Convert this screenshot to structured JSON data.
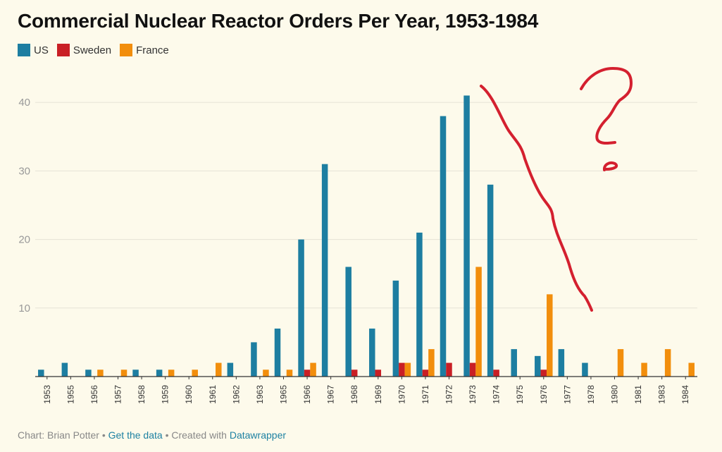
{
  "chart_data": {
    "type": "bar",
    "title": "Commercial Nuclear Reactor Orders Per Year, 1953-1984",
    "xlabel": "",
    "ylabel": "",
    "ylim": [
      0,
      44
    ],
    "yticks": [
      10,
      20,
      30,
      40
    ],
    "grid": true,
    "legend_position": "top-left",
    "categories": [
      "1953",
      "1955",
      "1956",
      "1957",
      "1958",
      "1959",
      "1960",
      "1961",
      "1962",
      "1963",
      "1965",
      "1966",
      "1967",
      "1968",
      "1969",
      "1970",
      "1971",
      "1972",
      "1973",
      "1974",
      "1975",
      "1976",
      "1977",
      "1978",
      "1980",
      "1981",
      "1983",
      "1984"
    ],
    "series": [
      {
        "name": "US",
        "color": "#1d7ea1",
        "values": [
          1,
          2,
          1,
          0,
          1,
          1,
          0,
          0,
          2,
          5,
          7,
          20,
          31,
          16,
          7,
          14,
          21,
          38,
          41,
          28,
          4,
          3,
          4,
          2,
          0,
          0,
          0,
          0
        ]
      },
      {
        "name": "Sweden",
        "color": "#c91f25",
        "values": [
          0,
          0,
          0,
          0,
          0,
          0,
          0,
          0,
          0,
          0,
          0,
          1,
          0,
          1,
          1,
          2,
          1,
          2,
          2,
          1,
          0,
          1,
          0,
          0,
          0,
          0,
          0,
          0
        ]
      },
      {
        "name": "France",
        "color": "#f28e0c",
        "values": [
          0,
          0,
          1,
          1,
          0,
          1,
          1,
          2,
          0,
          1,
          1,
          2,
          0,
          0,
          0,
          2,
          4,
          0,
          16,
          0,
          0,
          12,
          0,
          0,
          4,
          2,
          4,
          2
        ]
      }
    ],
    "annotation": "?"
  },
  "footer": {
    "credit": "Chart: Brian Potter",
    "sep1": " • ",
    "data_link": "Get the data",
    "sep2": " • Created with ",
    "tool_link": "Datawrapper"
  },
  "colors": {
    "background": "#fdfaeb",
    "annotation": "#d4202f",
    "grid": "#e6e3d6",
    "axis_text": "#999999"
  }
}
